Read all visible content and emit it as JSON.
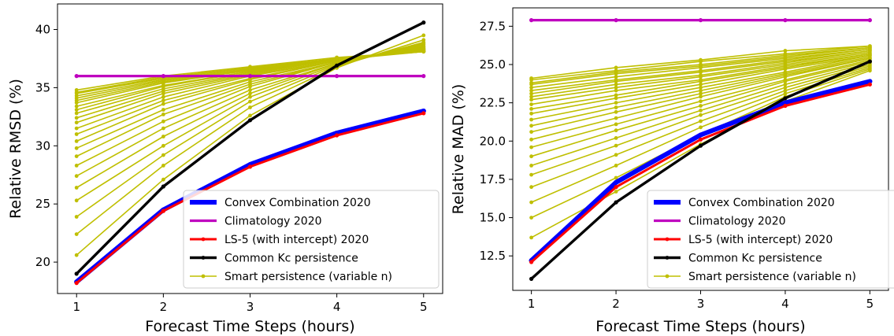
{
  "chart_data": [
    {
      "type": "line",
      "x": [
        1,
        2,
        3,
        4,
        5
      ],
      "xlabel": "Forecast Time Steps (hours)",
      "ylabel": "Relative RMSD (%)",
      "xlim": [
        0.78,
        5.22
      ],
      "ylim": [
        17.3,
        42.2
      ],
      "xticks": [
        "1",
        "2",
        "3",
        "4",
        "5"
      ],
      "yticks": [
        "20",
        "25",
        "30",
        "35",
        "40"
      ],
      "legend_position": "lower-right",
      "series": [
        {
          "name": "Convex Combination 2020",
          "color": "#0000ff",
          "values": [
            18.3,
            24.5,
            28.4,
            31.1,
            33.0
          ]
        },
        {
          "name": "Climatology 2020",
          "color": "#bf00bf",
          "values": [
            36.0,
            36.0,
            36.0,
            36.0,
            36.0
          ]
        },
        {
          "name": "LS-5 (with intercept) 2020",
          "color": "#ff0000",
          "values": [
            18.2,
            24.4,
            28.2,
            30.9,
            32.8
          ]
        },
        {
          "name": "Common Kc persistence",
          "color": "#000000",
          "values": [
            19.0,
            26.5,
            32.2,
            36.9,
            40.6
          ]
        },
        {
          "name": "Smart persistence (variable n)",
          "color": "#bfbf00",
          "group": [
            {
              "n": 1,
              "values": [
                20.6,
                27.1,
                32.6,
                36.7,
                39.5
              ]
            },
            {
              "n": 2,
              "values": [
                22.4,
                28.3,
                33.3,
                36.8,
                39.1
              ]
            },
            {
              "n": 3,
              "values": [
                23.9,
                29.2,
                33.8,
                36.9,
                38.9
              ]
            },
            {
              "n": 4,
              "values": [
                25.3,
                30.0,
                34.2,
                37.0,
                38.8
              ]
            },
            {
              "n": 5,
              "values": [
                26.4,
                30.8,
                34.5,
                37.1,
                38.7
              ]
            },
            {
              "n": 6,
              "values": [
                27.4,
                31.5,
                34.8,
                37.1,
                38.6
              ]
            },
            {
              "n": 7,
              "values": [
                28.3,
                32.1,
                35.1,
                37.2,
                38.5
              ]
            },
            {
              "n": 8,
              "values": [
                29.1,
                32.7,
                35.3,
                37.2,
                38.5
              ]
            },
            {
              "n": 9,
              "values": [
                29.8,
                33.1,
                35.5,
                37.2,
                38.4
              ]
            },
            {
              "n": 10,
              "values": [
                30.4,
                33.6,
                35.7,
                37.3,
                38.4
              ]
            },
            {
              "n": 11,
              "values": [
                31.0,
                33.9,
                35.8,
                37.3,
                38.3
              ]
            },
            {
              "n": 12,
              "values": [
                31.5,
                34.2,
                36.0,
                37.3,
                38.3
              ]
            },
            {
              "n": 13,
              "values": [
                32.0,
                34.5,
                36.1,
                37.3,
                38.3
              ]
            },
            {
              "n": 14,
              "values": [
                32.4,
                34.7,
                36.2,
                37.4,
                38.2
              ]
            },
            {
              "n": 15,
              "values": [
                32.8,
                34.9,
                36.3,
                37.4,
                38.2
              ]
            },
            {
              "n": 16,
              "values": [
                33.1,
                35.1,
                36.4,
                37.4,
                38.2
              ]
            },
            {
              "n": 17,
              "values": [
                33.4,
                35.2,
                36.4,
                37.4,
                38.2
              ]
            },
            {
              "n": 18,
              "values": [
                33.7,
                35.4,
                36.5,
                37.4,
                38.1
              ]
            },
            {
              "n": 19,
              "values": [
                33.9,
                35.5,
                36.5,
                37.5,
                38.1
              ]
            },
            {
              "n": 20,
              "values": [
                34.1,
                35.6,
                36.6,
                37.5,
                38.1
              ]
            },
            {
              "n": 21,
              "values": [
                34.3,
                35.7,
                36.6,
                37.5,
                38.1
              ]
            },
            {
              "n": 22,
              "values": [
                34.5,
                35.8,
                36.7,
                37.5,
                38.1
              ]
            },
            {
              "n": 23,
              "values": [
                34.6,
                35.9,
                36.7,
                37.5,
                38.1
              ]
            },
            {
              "n": 24,
              "values": [
                34.8,
                36.0,
                36.8,
                37.6,
                38.1
              ]
            }
          ]
        }
      ]
    },
    {
      "type": "line",
      "x": [
        1,
        2,
        3,
        4,
        5
      ],
      "xlabel": "Forecast Time Steps (hours)",
      "ylabel": "Relative MAD (%)",
      "xlim": [
        0.78,
        5.22
      ],
      "ylim": [
        10.25,
        28.7
      ],
      "xticks": [
        "1",
        "2",
        "3",
        "4",
        "5"
      ],
      "yticks": [
        "12.5",
        "15.0",
        "17.5",
        "20.0",
        "22.5",
        "25.0",
        "27.5"
      ],
      "legend_position": "lower-right",
      "series": [
        {
          "name": "Convex Combination 2020",
          "color": "#0000ff",
          "values": [
            12.2,
            17.3,
            20.4,
            22.5,
            23.9
          ]
        },
        {
          "name": "Climatology 2020",
          "color": "#bf00bf",
          "values": [
            27.9,
            27.9,
            27.9,
            27.9,
            27.9
          ]
        },
        {
          "name": "LS-5 (with intercept) 2020",
          "color": "#ff0000",
          "values": [
            12.1,
            17.0,
            20.1,
            22.3,
            23.7
          ]
        },
        {
          "name": "Common Kc persistence",
          "color": "#000000",
          "values": [
            11.0,
            16.0,
            19.7,
            22.8,
            25.2
          ]
        },
        {
          "name": "Smart persistence (variable n)",
          "color": "#bfbf00",
          "group": [
            {
              "n": 1,
              "values": [
                13.7,
                16.7,
                19.8,
                22.6,
                24.6
              ]
            },
            {
              "n": 2,
              "values": [
                15.0,
                17.6,
                20.4,
                22.9,
                24.7
              ]
            },
            {
              "n": 3,
              "values": [
                16.0,
                18.4,
                20.9,
                23.1,
                24.8
              ]
            },
            {
              "n": 4,
              "values": [
                17.0,
                19.1,
                21.3,
                23.3,
                24.9
              ]
            },
            {
              "n": 5,
              "values": [
                17.8,
                19.7,
                21.7,
                23.5,
                25.0
              ]
            },
            {
              "n": 6,
              "values": [
                18.4,
                20.2,
                22.0,
                23.7,
                25.1
              ]
            },
            {
              "n": 7,
              "values": [
                19.0,
                20.7,
                22.3,
                23.9,
                25.2
              ]
            },
            {
              "n": 8,
              "values": [
                19.6,
                21.1,
                22.6,
                24.0,
                25.3
              ]
            },
            {
              "n": 9,
              "values": [
                20.1,
                21.5,
                22.9,
                24.2,
                25.4
              ]
            },
            {
              "n": 10,
              "values": [
                20.6,
                21.9,
                23.1,
                24.3,
                25.4
              ]
            },
            {
              "n": 11,
              "values": [
                21.0,
                22.2,
                23.3,
                24.4,
                25.5
              ]
            },
            {
              "n": 12,
              "values": [
                21.4,
                22.5,
                23.5,
                24.5,
                25.6
              ]
            },
            {
              "n": 13,
              "values": [
                21.8,
                22.8,
                23.7,
                24.7,
                25.6
              ]
            },
            {
              "n": 14,
              "values": [
                22.1,
                23.0,
                23.9,
                24.8,
                25.7
              ]
            },
            {
              "n": 15,
              "values": [
                22.4,
                23.3,
                24.0,
                24.9,
                25.7
              ]
            },
            {
              "n": 16,
              "values": [
                22.7,
                23.5,
                24.2,
                25.0,
                25.8
              ]
            },
            {
              "n": 17,
              "values": [
                22.9,
                23.7,
                24.3,
                25.1,
                25.9
              ]
            },
            {
              "n": 18,
              "values": [
                23.1,
                23.9,
                24.5,
                25.2,
                25.9
              ]
            },
            {
              "n": 19,
              "values": [
                23.3,
                24.0,
                24.6,
                25.3,
                26.0
              ]
            },
            {
              "n": 20,
              "values": [
                23.5,
                24.2,
                24.8,
                25.4,
                26.0
              ]
            },
            {
              "n": 21,
              "values": [
                23.7,
                24.4,
                24.9,
                25.5,
                26.1
              ]
            },
            {
              "n": 22,
              "values": [
                23.8,
                24.5,
                25.0,
                25.6,
                26.1
              ]
            },
            {
              "n": 23,
              "values": [
                24.0,
                24.6,
                25.2,
                25.7,
                26.2
              ]
            },
            {
              "n": 24,
              "values": [
                24.1,
                24.8,
                25.3,
                25.9,
                26.2
              ]
            }
          ]
        }
      ]
    }
  ]
}
